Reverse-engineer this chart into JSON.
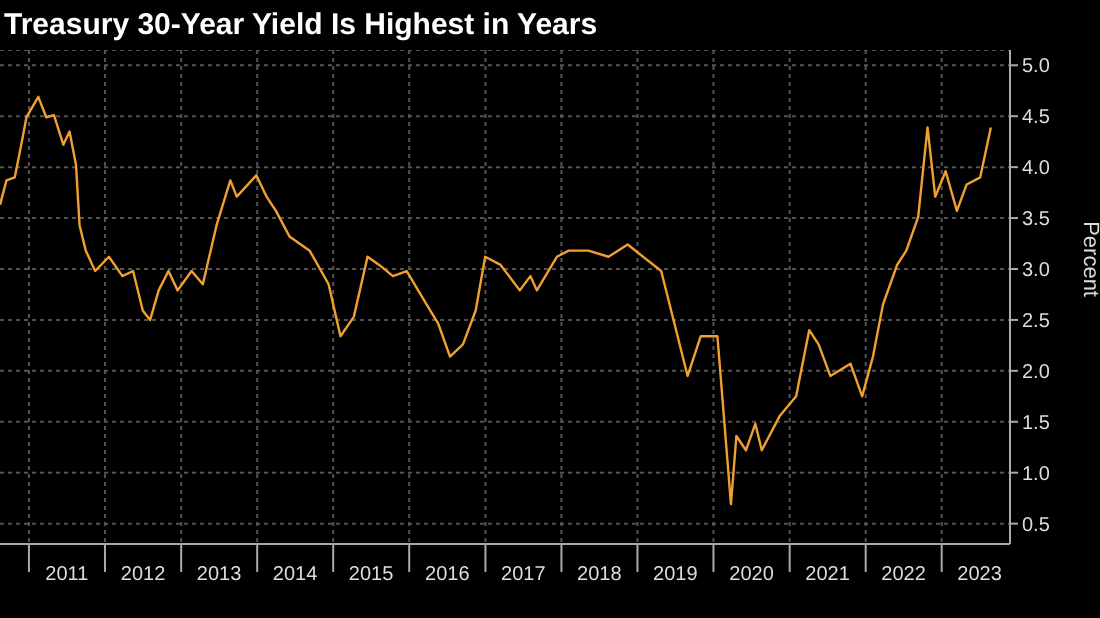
{
  "chart_data": {
    "type": "line",
    "title": "Treasury 30-Year Yield Is Highest in Years",
    "ylabel": "Percent",
    "x": [
      "2010-08-15",
      "2010-09-15",
      "2010-10-25",
      "2010-11-25",
      "2010-12-20",
      "2011-02-15",
      "2011-03-25",
      "2011-05-01",
      "2011-06-15",
      "2011-07-15",
      "2011-08-15",
      "2011-09-01",
      "2011-10-01",
      "2011-11-15",
      "2012-01-20",
      "2012-03-25",
      "2012-05-15",
      "2012-07-01",
      "2012-08-05",
      "2012-09-15",
      "2012-11-01",
      "2012-12-15",
      "2013-02-20",
      "2013-04-15",
      "2013-06-20",
      "2013-08-25",
      "2013-09-25",
      "2013-12-28",
      "2014-02-15",
      "2014-04-01",
      "2014-06-05",
      "2014-09-10",
      "2014-12-10",
      "2015-02-05",
      "2015-04-10",
      "2015-06-15",
      "2015-08-10",
      "2015-10-15",
      "2015-12-20",
      "2016-03-25",
      "2016-05-20",
      "2016-07-15",
      "2016-09-15",
      "2016-11-15",
      "2016-12-31",
      "2017-03-15",
      "2017-06-15",
      "2017-08-05",
      "2017-09-05",
      "2017-12-10",
      "2018-02-05",
      "2018-05-10",
      "2018-08-15",
      "2018-11-15",
      "2019-04-25",
      "2019-08-30",
      "2019-11-01",
      "2020-01-20",
      "2020-03-25",
      "2020-04-20",
      "2020-06-05",
      "2020-07-20",
      "2020-08-20",
      "2020-11-15",
      "2021-02-01",
      "2021-04-05",
      "2021-05-20",
      "2021-07-15",
      "2021-10-20",
      "2021-12-15",
      "2022-02-05",
      "2022-03-25",
      "2022-06-01",
      "2022-07-15",
      "2022-09-10",
      "2022-10-25",
      "2022-12-01",
      "2023-01-20",
      "2023-03-15",
      "2023-05-01",
      "2023-07-05",
      "2023-08-25"
    ],
    "series": [
      {
        "color": "#f0a030",
        "values": [
          3.63,
          3.87,
          3.9,
          4.22,
          4.49,
          4.69,
          4.49,
          4.51,
          4.22,
          4.35,
          4.02,
          3.43,
          3.18,
          2.98,
          3.12,
          2.93,
          2.98,
          2.59,
          2.5,
          2.79,
          2.98,
          2.79,
          2.98,
          2.85,
          3.43,
          3.87,
          3.71,
          3.92,
          3.71,
          3.57,
          3.32,
          3.18,
          2.85,
          2.34,
          2.53,
          3.12,
          3.04,
          2.93,
          2.98,
          2.65,
          2.46,
          2.14,
          2.26,
          2.59,
          3.12,
          3.04,
          2.79,
          2.93,
          2.79,
          3.12,
          3.18,
          3.18,
          3.12,
          3.24,
          2.98,
          1.95,
          2.34,
          2.34,
          0.69,
          1.36,
          1.22,
          1.48,
          1.22,
          1.56,
          1.75,
          2.4,
          2.26,
          1.95,
          2.07,
          1.75,
          2.14,
          2.65,
          3.04,
          3.18,
          3.51,
          4.39,
          3.71,
          3.96,
          3.57,
          3.83,
          3.9,
          4.39
        ]
      }
    ],
    "xlim": [
      "2010-08-15",
      "2023-11-25"
    ],
    "xticks": [
      {
        "value": "2011-01-01",
        "label": null
      },
      {
        "value": "2011-07-02",
        "label": "2011"
      },
      {
        "value": "2012-01-01",
        "label": null
      },
      {
        "value": "2012-07-02",
        "label": "2012"
      },
      {
        "value": "2013-01-01",
        "label": null
      },
      {
        "value": "2013-07-02",
        "label": "2013"
      },
      {
        "value": "2014-01-01",
        "label": null
      },
      {
        "value": "2014-07-02",
        "label": "2014"
      },
      {
        "value": "2015-01-01",
        "label": null
      },
      {
        "value": "2015-07-02",
        "label": "2015"
      },
      {
        "value": "2016-01-01",
        "label": null
      },
      {
        "value": "2016-07-02",
        "label": "2016"
      },
      {
        "value": "2017-01-01",
        "label": null
      },
      {
        "value": "2017-07-02",
        "label": "2017"
      },
      {
        "value": "2018-01-01",
        "label": null
      },
      {
        "value": "2018-07-02",
        "label": "2018"
      },
      {
        "value": "2019-01-01",
        "label": null
      },
      {
        "value": "2019-07-02",
        "label": "2019"
      },
      {
        "value": "2020-01-01",
        "label": null
      },
      {
        "value": "2020-07-02",
        "label": "2020"
      },
      {
        "value": "2021-01-01",
        "label": null
      },
      {
        "value": "2021-07-02",
        "label": "2021"
      },
      {
        "value": "2022-01-01",
        "label": null
      },
      {
        "value": "2022-07-02",
        "label": "2022"
      },
      {
        "value": "2023-01-01",
        "label": null
      },
      {
        "value": "2023-07-02",
        "label": "2023"
      }
    ],
    "ylim": [
      0.3,
      5.15
    ],
    "yticks": [
      {
        "value": 0.5,
        "label": "0.5"
      },
      {
        "value": 1,
        "label": "1.0"
      },
      {
        "value": 1.5,
        "label": "1.5"
      },
      {
        "value": 2,
        "label": "2.0"
      },
      {
        "value": 2.5,
        "label": "2.5"
      },
      {
        "value": 3,
        "label": "3.0"
      },
      {
        "value": 3.5,
        "label": "3.5"
      },
      {
        "value": 4,
        "label": "4.0"
      },
      {
        "value": 4.5,
        "label": "4.5"
      },
      {
        "value": 5,
        "label": "5.0"
      }
    ],
    "grid": true,
    "legend": false
  }
}
